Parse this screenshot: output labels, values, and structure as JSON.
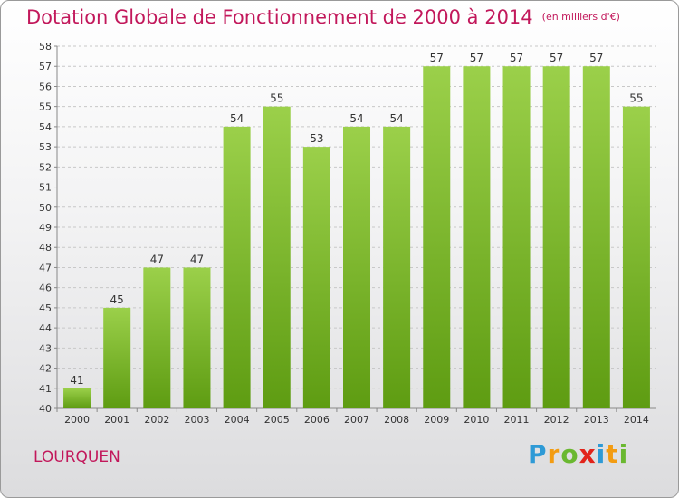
{
  "title": "Dotation Globale de Fonctionnement de 2000 à 2014",
  "unit": "(en milliers d'€)",
  "commune": "LOURQUEN",
  "logo": {
    "text": "Proxiti",
    "letters": [
      "P",
      "r",
      "o",
      "x",
      "i",
      "t",
      "i"
    ]
  },
  "colors": {
    "accent": "#c2185b",
    "bar_top": "#9bd04a",
    "bar_bottom": "#5e9c12",
    "grid": "#c8c8c8"
  },
  "chart_data": {
    "type": "bar",
    "categories": [
      "2000",
      "2001",
      "2002",
      "2003",
      "2004",
      "2005",
      "2006",
      "2007",
      "2008",
      "2009",
      "2010",
      "2011",
      "2012",
      "2013",
      "2014"
    ],
    "values": [
      41,
      45,
      47,
      47,
      54,
      55,
      53,
      54,
      54,
      57,
      57,
      57,
      57,
      57,
      55
    ],
    "data_labels": [
      "41",
      "45",
      "47",
      "47",
      "54",
      "55",
      "53",
      "54",
      "54",
      "57",
      "57",
      "57",
      "57",
      "57",
      "55"
    ],
    "title": "Dotation Globale de Fonctionnement de 2000 à 2014",
    "xlabel": "",
    "ylabel": "",
    "ylim": [
      40,
      58
    ],
    "yticks": [
      "40",
      "41",
      "42",
      "43",
      "44",
      "45",
      "46",
      "47",
      "48",
      "49",
      "50",
      "51",
      "52",
      "53",
      "54",
      "55",
      "56",
      "57",
      "58"
    ],
    "grid": true,
    "legend": "none"
  }
}
